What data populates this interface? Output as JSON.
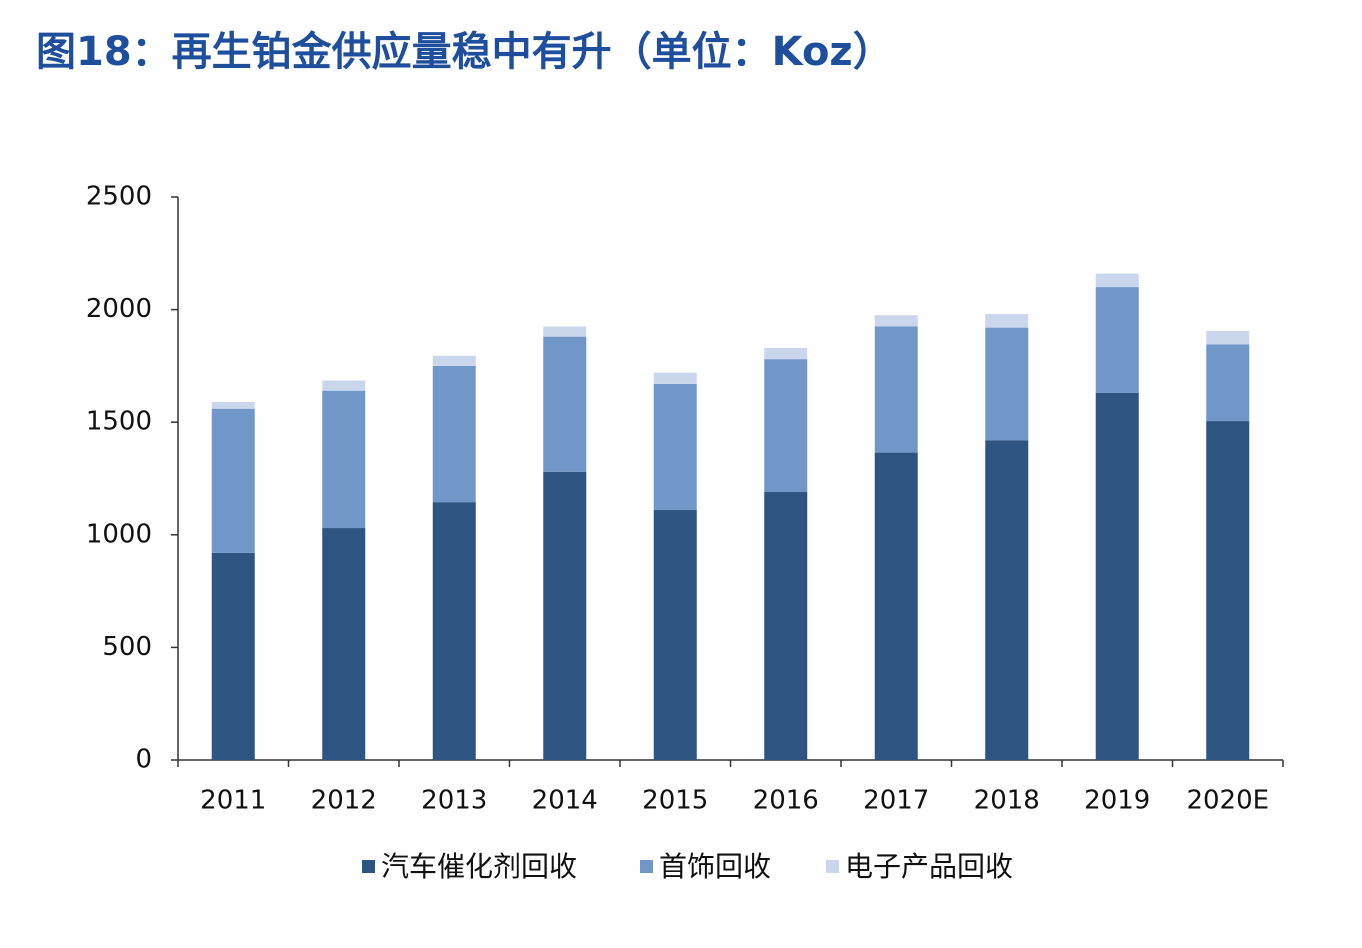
{
  "chart_data": {
    "type": "stacked_bar",
    "title": "图18：再生铂金供应量稳中有升（单位：Koz）",
    "categories": [
      "2011",
      "2012",
      "2013",
      "2014",
      "2015",
      "2016",
      "2017",
      "2018",
      "2019",
      "2020E"
    ],
    "series": [
      {
        "name": "汽车催化剂回收",
        "color": "#2e5481",
        "values": [
          920,
          1030,
          1145,
          1280,
          1110,
          1190,
          1365,
          1420,
          1630,
          1505
        ]
      },
      {
        "name": "首饰回收",
        "color": "#7197c9",
        "values": [
          640,
          610,
          605,
          600,
          560,
          590,
          560,
          500,
          470,
          340
        ]
      },
      {
        "name": "电子产品回收",
        "color": "#c9d6ec",
        "values": [
          30,
          45,
          45,
          45,
          50,
          50,
          50,
          60,
          60,
          60
        ]
      }
    ],
    "ylim": [
      0,
      2500
    ],
    "yticks": [
      0,
      500,
      1000,
      1500,
      2000,
      2500
    ]
  }
}
